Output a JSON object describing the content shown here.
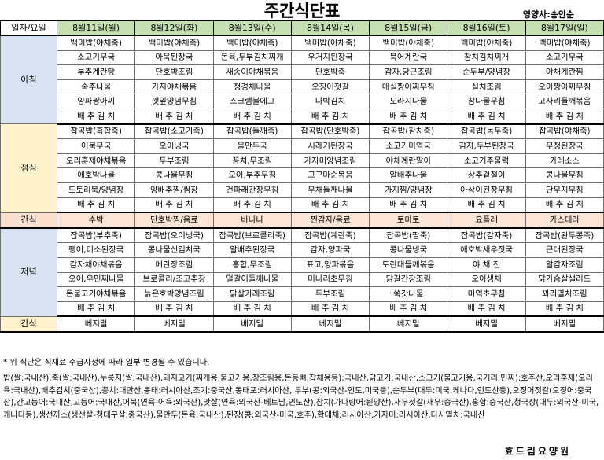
{
  "title": "주간식단표",
  "nutritionist": "영양사:송안순",
  "header": {
    "corner": "일자/요일",
    "days": [
      "8월11일(월)",
      "8월12일(화)",
      "8월13일(수)",
      "8월14일(목)",
      "8월15일(금)",
      "8월16일(토)",
      "8월17일(일)"
    ]
  },
  "sections": [
    {
      "meal": "아침",
      "type": "morning",
      "rows": [
        [
          "백미밥(야채죽)",
          "백미밥(야채죽)",
          "백미밥(야채죽)",
          "백미밥(야채죽)",
          "백미밥(야채죽)",
          "백미밥(야채죽)",
          "백미밥(야채죽)"
        ],
        [
          "소고기무국",
          "아욱된장국",
          "돈육,두부김치찌개",
          "우거지된장국",
          "북어계란국",
          "참치김치찌개",
          "소고기무국"
        ],
        [
          "부추계란탕",
          "단호박조림",
          "새송이야채볶음",
          "단호박죽",
          "감자,당근조림",
          "순두부/양념장",
          "야채계란찜"
        ],
        [
          "숙주나물",
          "가지야채볶음",
          "청경채나물",
          "오징어젓갈",
          "매실짱아찌무침",
          "실치조림",
          "오이짱아찌무침"
        ],
        [
          "양파짱아찌",
          "깻잎양념무침",
          "스크램블에그",
          "나박김치",
          "도라지나물",
          "참나물무침",
          "고사리들깨볶음"
        ],
        [
          "배 추 김 치",
          "배 추 김 치",
          "배 추 김 치",
          "배 추 김 치",
          "배 추 김 치",
          "배 추 김 치",
          "배 추 김 치"
        ]
      ]
    },
    {
      "meal": "점심",
      "type": "lunch",
      "rows": [
        [
          "잡곡밥(흑합죽)",
          "잡곡밥(소고기죽)",
          "잡곡밥(들깨죽)",
          "잡곡밥(단호박죽)",
          "잡곡밥(참치죽)",
          "잡곡밥(녹두죽)",
          "잡곡밥(야채죽)"
        ],
        [
          "어묵무국",
          "오이냉국",
          "물만두국",
          "시레기된장국",
          "소고기미역국",
          "감자,두부된장국",
          "무청된장국"
        ],
        [
          "오리훈제야채볶음",
          "두부조림",
          "꽁치,무조림",
          "가자미양념조림",
          "야채계란말이",
          "소고기주물럭",
          "카레소스"
        ],
        [
          "애호박나물",
          "콩나물무침",
          "오이,부추무침",
          "고구마순볶음",
          "알배추나물",
          "상추겉절이",
          "콩나물무침"
        ],
        [
          "도토리묵/양념장",
          "양배추찜/쌈장",
          "건파래간장무침",
          "무채들깨나물",
          "가지찜/양념장",
          "아삭이된장무침",
          "단무지무침"
        ],
        [
          "배 추 김 치",
          "배 추 김 치",
          "배 추 김 치",
          "배 추 김 치",
          "배 추 김 치",
          "배 추 김 치",
          "배 추 김 치"
        ]
      ]
    },
    {
      "meal": "간식",
      "type": "snack",
      "rows": [
        [
          "수박",
          "단호박찜/음료",
          "바나나",
          "찐감자/음료",
          "토마토",
          "요플레",
          "카스테라"
        ]
      ]
    },
    {
      "meal": "저녁",
      "type": "dinner",
      "rows": [
        [
          "잡곡밥(부추죽)",
          "잡곡밥(오이냉국)",
          "잡곡밥(브로콜리죽)",
          "잡곡밥(계란죽)",
          "잡곡밥(팥죽)",
          "잡곡밥(감자죽)",
          "잡곡밥(완두콩죽)"
        ],
        [
          "팽이,미소된장국",
          "콩나물신김치국",
          "알배추된장국",
          "감자,양파국",
          "콩나물냉국",
          "애호박새우젓국",
          "근대된장국"
        ],
        [
          "감자채야채볶음",
          "메란장조림",
          "홍합,무조림",
          "표고,양파볶음",
          "토란대들깨볶음",
          "야 채 전",
          "알감자조림"
        ],
        [
          "오이,우민찌나물",
          "브로콜리/조고추장",
          "얼갈이들깨나물",
          "미나리초무침",
          "닭갈간장조림",
          "오이생채",
          "닭가슴살샐러드"
        ],
        [
          "돈불고기야채볶음",
          "늙은호박양념조림",
          "닭살카레조림",
          "두부조림",
          "쑥갓나물",
          "미역초무침",
          "꽈리멸치조림"
        ],
        [
          "배 추 김 치",
          "배 추 김 치",
          "배 추 김 치",
          "배 추 김 치",
          "배 추 김 치",
          "배 추 김 치",
          "배 추 김 치"
        ]
      ]
    },
    {
      "meal": "간식",
      "type": "snack2",
      "rows": [
        [
          "베지밀",
          "베지밀",
          "베지밀",
          "베지밀",
          "베지밀",
          "베지밀",
          "베지밀"
        ]
      ]
    }
  ],
  "note": "* 위 식단은 식재료 수급사정에 따라 일부 변경될 수 있습니다.",
  "origin": "밥(쌀:국내산),죽(쌀:국내산),누룽지(쌀:국내산),돼지고기(찌개용,불고기용,장조림용,돈등뼈,잡채용등):국내산,닭고기:국내산,소고기(불고기용,국거리,민찌):호주산,오리훈제(오리육:국내산),배추김치(중국산),꽁치:대만산,동태:러시아산,조기:중국산,동태포:러시아산, 두부(콩:외국산-인도,미국등),순두부(대두:미국,케나다,인도산등),오징어젓갈(오징어:중국산),간고등어:국내산,고등어:국내산,어묵(연육-어육:외국산),맛살(연육:외국산-베트남,인도산),참치(가다랑어:원양산),새우젓갈(새우:중국산),홍합:중국산,청국장(대두:외국산-미국,캐나다등),생선까스(생선살-청대구살:중국산),물만두(돈육:국내산),된장(콩:외국산-미국,호주),황태채:러시아산,가자미:러시아산,다시멸치:국내산",
  "footer": "효드림요양원"
}
